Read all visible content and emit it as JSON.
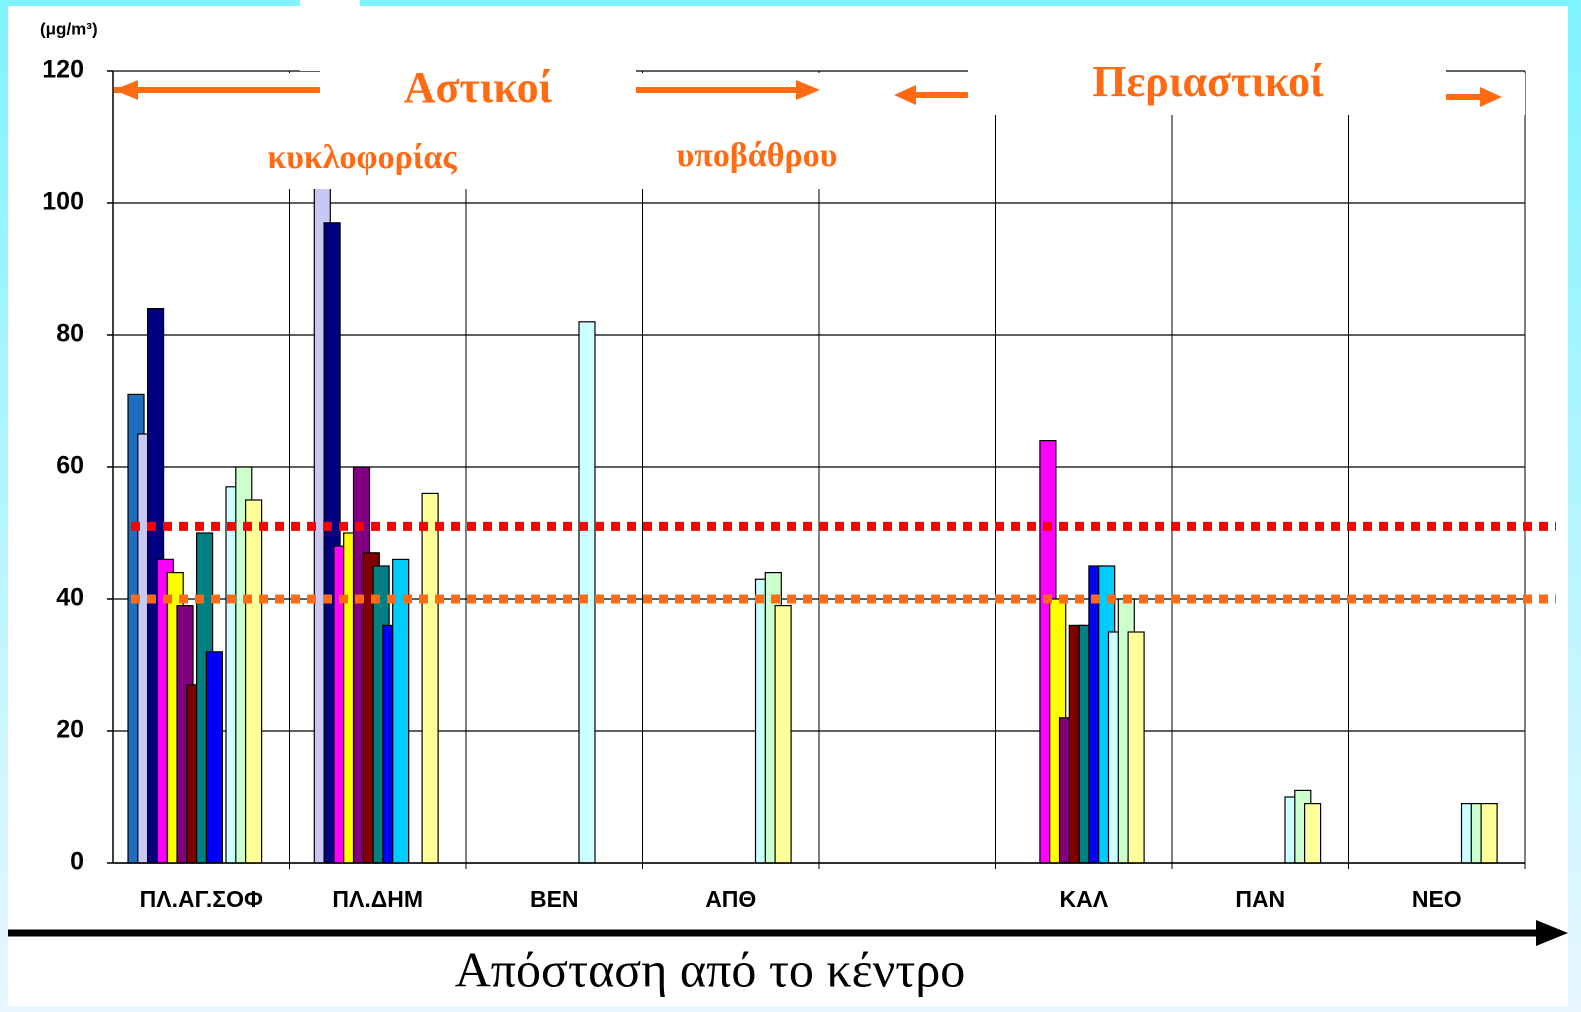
{
  "chart_data": {
    "type": "bar",
    "y_unit": "(μg/m³)",
    "x_label": "Απόσταση από το κέντρο",
    "annotations": [
      "Αστικοί",
      "Περιαστικοί",
      "κυκλοφορίας",
      "υποβάθρου"
    ],
    "categories": [
      "ΠΛ.ΑΓ.ΣΟΦ",
      "ΠΛ.ΔΗΜ",
      "ΒΕΝ",
      "ΑΠΘ",
      null,
      "ΚΑΛ",
      "ΠΑΝ",
      "ΝΕΟ"
    ],
    "series": [
      {
        "color": "#1f6fc0",
        "values": [
          71,
          null,
          null,
          null,
          null,
          null,
          null,
          null
        ]
      },
      {
        "color": "#c8c8f4",
        "values": [
          65,
          110,
          null,
          null,
          null,
          null,
          null,
          null
        ]
      },
      {
        "color": "#000080",
        "values": [
          84,
          97,
          null,
          null,
          null,
          null,
          null,
          null
        ]
      },
      {
        "color": "#ff00ff",
        "values": [
          46,
          48,
          null,
          null,
          null,
          64,
          null,
          null
        ]
      },
      {
        "color": "#ffff00",
        "values": [
          44,
          50,
          null,
          null,
          null,
          40,
          null,
          null
        ]
      },
      {
        "color": "#800080",
        "values": [
          39,
          60,
          null,
          null,
          null,
          22,
          null,
          null
        ]
      },
      {
        "color": "#800000",
        "values": [
          27,
          47,
          null,
          null,
          null,
          36,
          null,
          null
        ]
      },
      {
        "color": "#008080",
        "values": [
          50,
          45,
          null,
          null,
          null,
          36,
          null,
          null
        ]
      },
      {
        "color": "#0000ff",
        "values": [
          32,
          36,
          null,
          null,
          null,
          45,
          null,
          null
        ]
      },
      {
        "color": "#00ccff",
        "values": [
          null,
          46,
          null,
          null,
          null,
          45,
          null,
          null
        ]
      },
      {
        "color": "#ccffff",
        "values": [
          57,
          null,
          82,
          43,
          null,
          35,
          10,
          9
        ]
      },
      {
        "color": "#ccffcc",
        "values": [
          60,
          null,
          null,
          44,
          null,
          40,
          11,
          9
        ]
      },
      {
        "color": "#ffff99",
        "values": [
          55,
          56,
          null,
          39,
          null,
          35,
          9,
          9
        ]
      }
    ],
    "reference_lines": [
      {
        "value": 51,
        "color": "#ff0000"
      },
      {
        "value": 40,
        "color": "#ff6a13"
      }
    ],
    "ylim": [
      0,
      120
    ],
    "yticks": [
      0,
      20,
      40,
      60,
      80,
      100,
      120
    ],
    "grid": true
  }
}
